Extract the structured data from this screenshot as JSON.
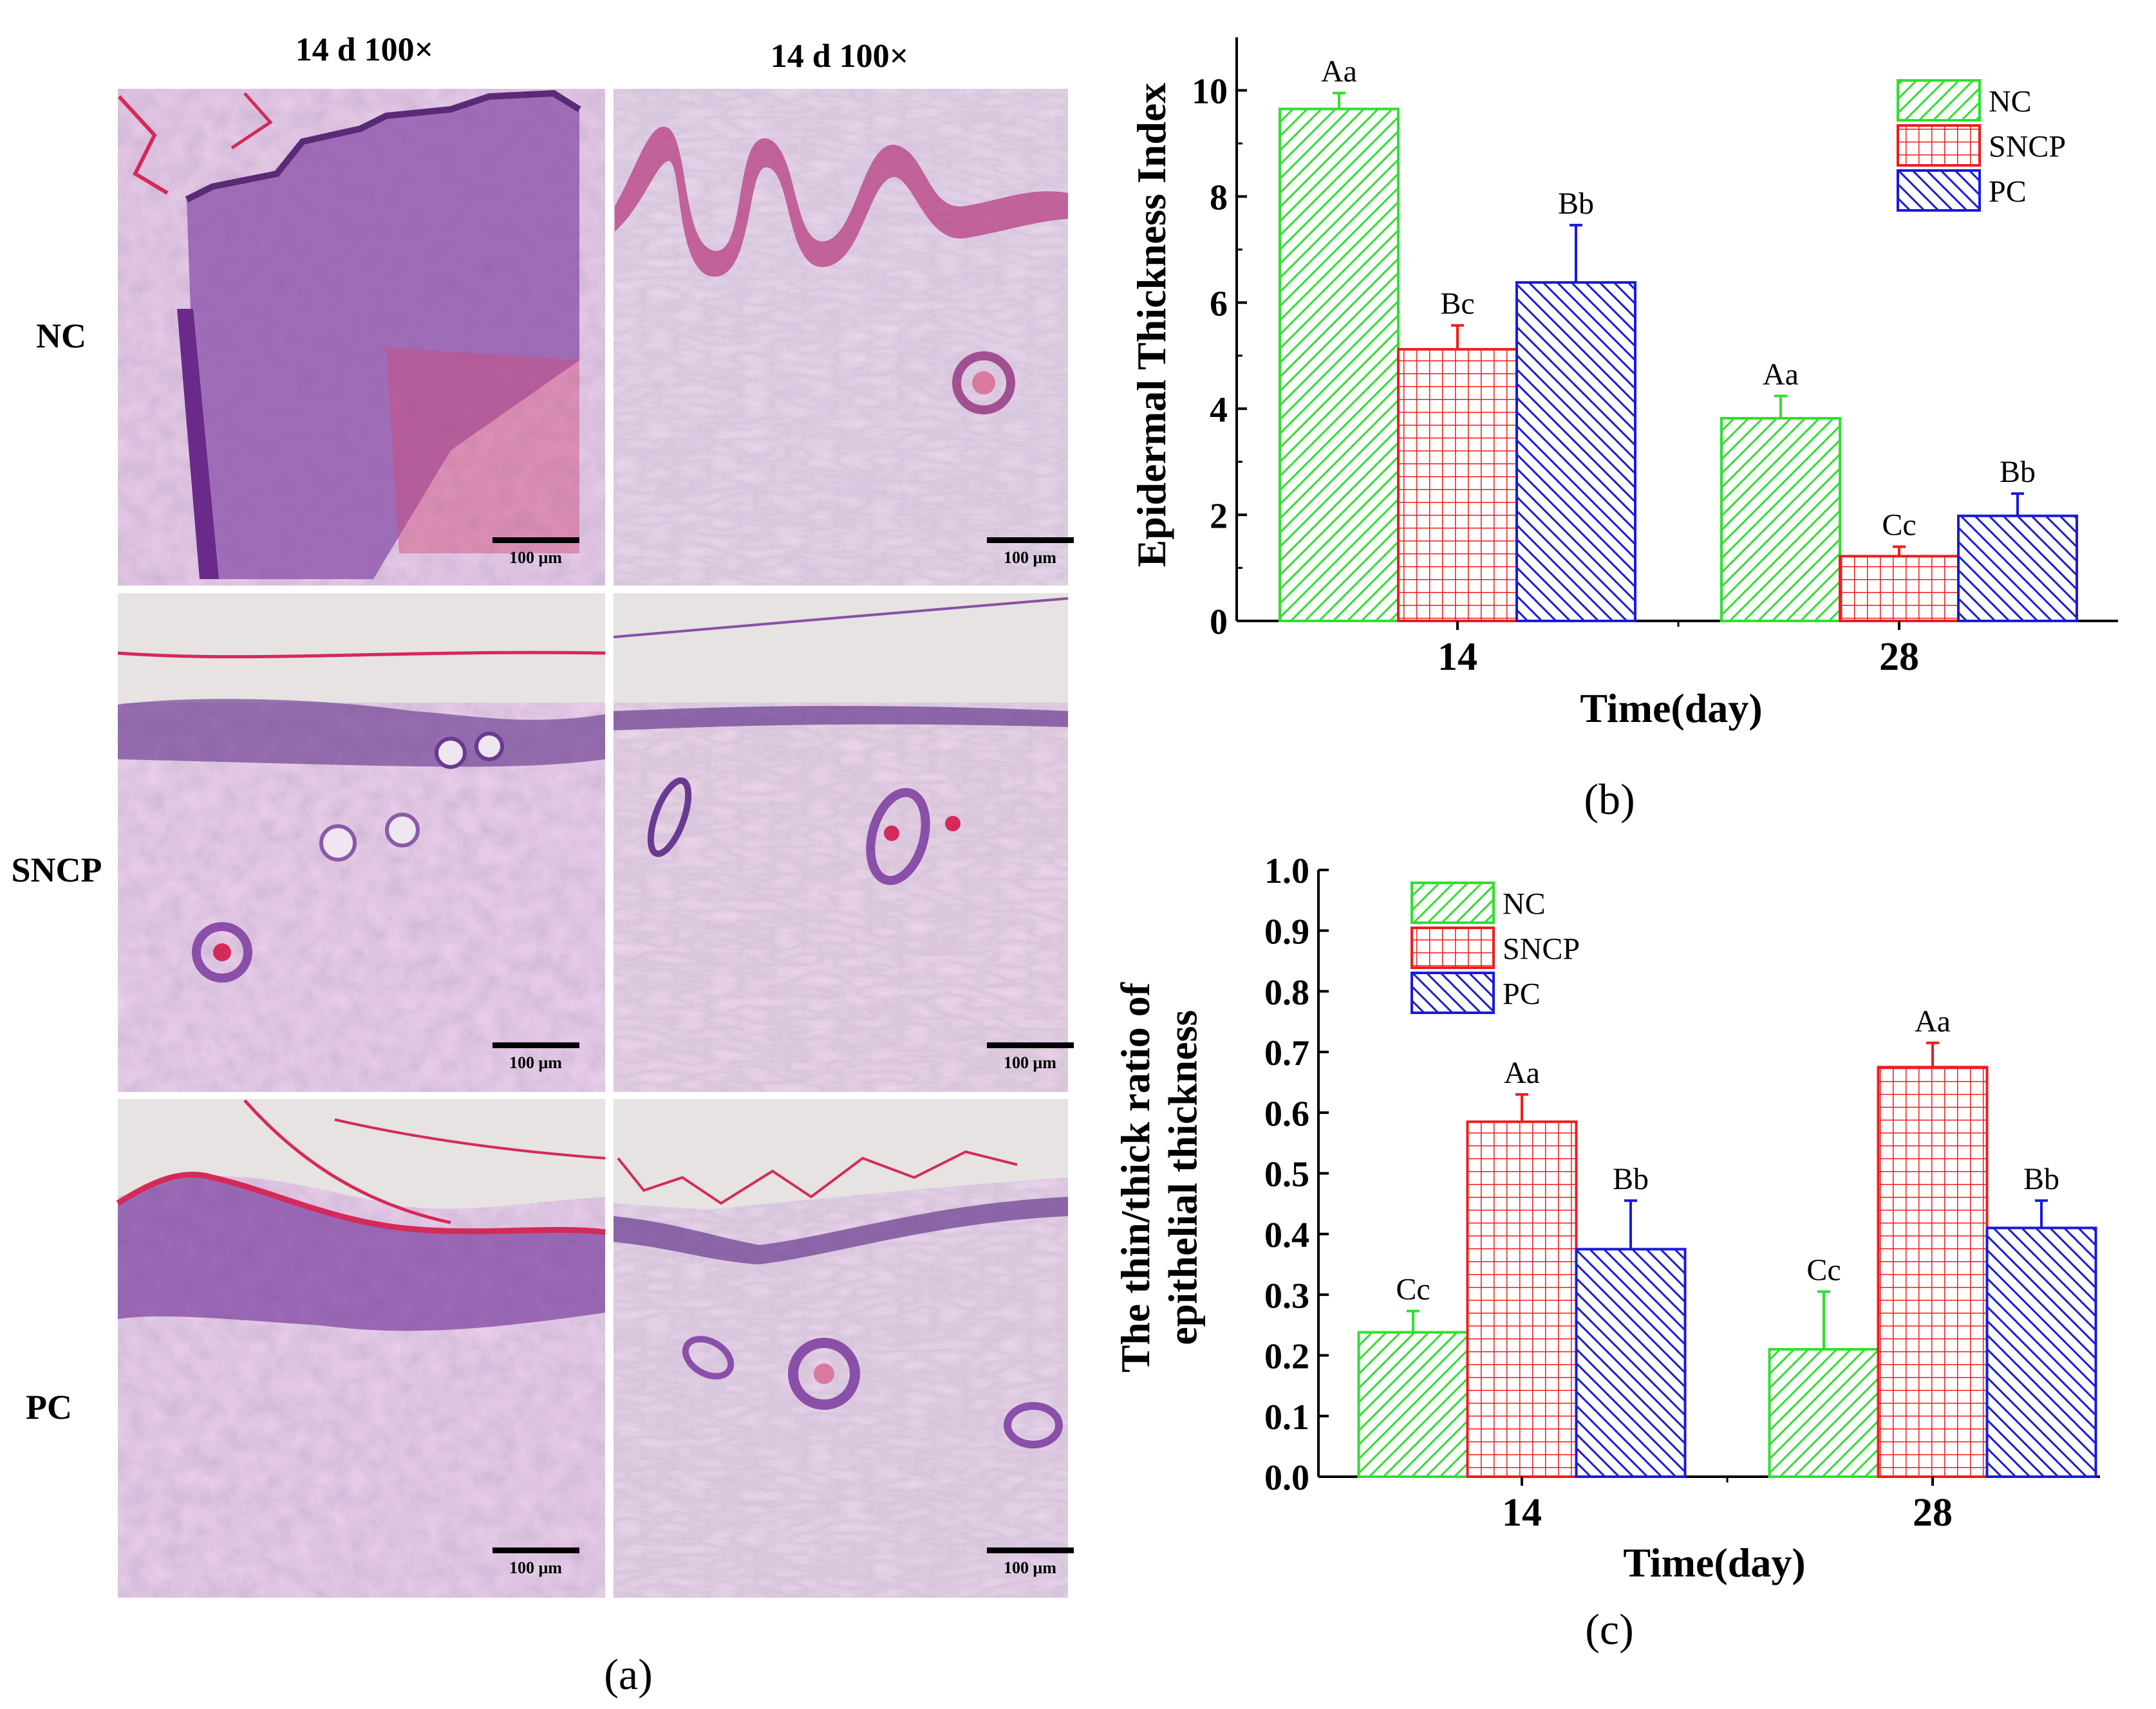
{
  "panel_a": {
    "col_headers": [
      "14 d 100×",
      "14 d 100×"
    ],
    "row_labels": [
      "NC",
      "SNCP",
      "PC"
    ],
    "scale_bar_label": "100 μm",
    "caption": "(a)"
  },
  "colors": {
    "NC": "#2ee02e",
    "SNCP": "#ee1c1c",
    "PC": "#1a1adb",
    "tissue_pink": "#c88fc4",
    "tissue_purple": "#8a4fa8",
    "keratin_red": "#d42a5a"
  },
  "chart_data": [
    {
      "type": "bar",
      "caption": "(b)",
      "xlabel": "Time(day)",
      "ylabel": "Epidermal Thickness Index",
      "categories": [
        "14",
        "28"
      ],
      "ylim": [
        0,
        11
      ],
      "yticks": [
        "0",
        "2",
        "4",
        "6",
        "8",
        "10"
      ],
      "legend_position": "top-right",
      "series": [
        {
          "name": "NC",
          "pattern": "diagonal-forward",
          "values": [
            9.65,
            3.82
          ],
          "errors": [
            0.3,
            0.42
          ],
          "labels": [
            "Aa",
            "Aa"
          ]
        },
        {
          "name": "SNCP",
          "pattern": "grid",
          "values": [
            5.12,
            1.22
          ],
          "errors": [
            0.45,
            0.18
          ],
          "labels": [
            "Bc",
            "Cc"
          ]
        },
        {
          "name": "PC",
          "pattern": "diagonal-back",
          "values": [
            6.38,
            1.98
          ],
          "errors": [
            1.08,
            0.42
          ],
          "labels": [
            "Bb",
            "Bb"
          ]
        }
      ]
    },
    {
      "type": "bar",
      "caption": "(c)",
      "xlabel": "Time(day)",
      "ylabel_lines": [
        "The thin/thick ratio of",
        "epithelial thickness"
      ],
      "categories": [
        "14",
        "28"
      ],
      "ylim": [
        0,
        1.0
      ],
      "yticks": [
        "0.0",
        "0.1",
        "0.2",
        "0.3",
        "0.4",
        "0.5",
        "0.6",
        "0.7",
        "0.8",
        "0.9",
        "1.0"
      ],
      "legend_position": "top-left",
      "series": [
        {
          "name": "NC",
          "pattern": "diagonal-forward",
          "values": [
            0.238,
            0.21
          ],
          "errors": [
            0.035,
            0.095
          ],
          "labels": [
            "Cc",
            "Cc"
          ]
        },
        {
          "name": "SNCP",
          "pattern": "grid",
          "values": [
            0.585,
            0.675
          ],
          "errors": [
            0.045,
            0.04
          ],
          "labels": [
            "Aa",
            "Aa"
          ]
        },
        {
          "name": "PC",
          "pattern": "diagonal-back",
          "values": [
            0.375,
            0.41
          ],
          "errors": [
            0.08,
            0.045
          ],
          "labels": [
            "Bb",
            "Bb"
          ]
        }
      ]
    }
  ]
}
